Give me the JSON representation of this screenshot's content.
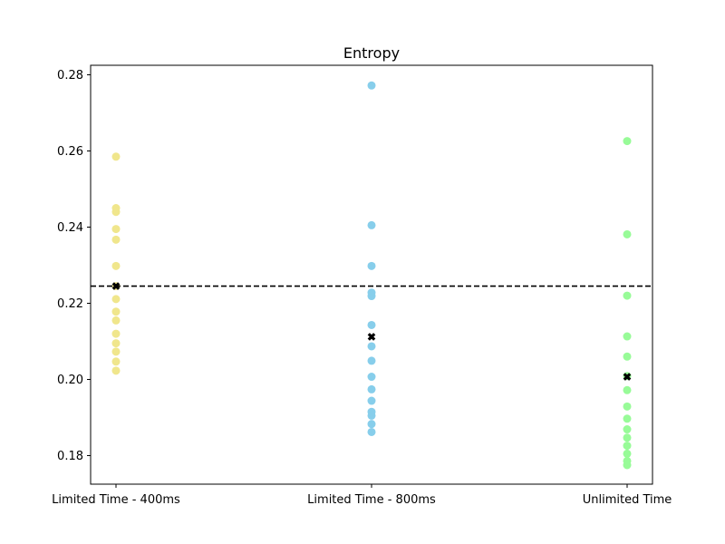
{
  "chart_data": {
    "type": "scatter",
    "title": "Entropy",
    "xlabel": "",
    "ylabel": "",
    "categories": [
      "Limited Time - 400ms",
      "Limited Time - 800ms",
      "Unlimited Time"
    ],
    "ylim": [
      0.1725,
      0.2825
    ],
    "yticks": [
      0.18,
      0.2,
      0.22,
      0.24,
      0.26,
      0.28
    ],
    "ytick_labels": [
      "0.18",
      "0.20",
      "0.22",
      "0.24",
      "0.26",
      "0.28"
    ],
    "grid": false,
    "series": [
      {
        "category": "Limited Time - 400ms",
        "color": "#f0e68c",
        "values": [
          0.2585,
          0.245,
          0.244,
          0.2395,
          0.2367,
          0.2298,
          0.2245,
          0.2211,
          0.2178,
          0.2155,
          0.212,
          0.2095,
          0.2073,
          0.2047,
          0.2023
        ],
        "mean": 0.2245
      },
      {
        "category": "Limited Time - 800ms",
        "color": "#87ceeb",
        "values": [
          0.2772,
          0.2405,
          0.2298,
          0.2228,
          0.2219,
          0.2143,
          0.2087,
          0.2049,
          0.2007,
          0.1974,
          0.1944,
          0.1915,
          0.1905,
          0.1883,
          0.1862
        ],
        "mean": 0.2112
      },
      {
        "category": "Unlimited Time",
        "color": "#98fb98",
        "values": [
          0.2626,
          0.2381,
          0.222,
          0.2113,
          0.206,
          0.2009,
          0.1972,
          0.1929,
          0.1897,
          0.1869,
          0.1847,
          0.1826,
          0.1805,
          0.1786,
          0.1775
        ],
        "mean": 0.2007
      }
    ],
    "mean_marker": {
      "shape": "x",
      "color": "#000000"
    },
    "reference_line": {
      "y": 0.2245,
      "style": "dashed",
      "color": "#000000"
    }
  }
}
